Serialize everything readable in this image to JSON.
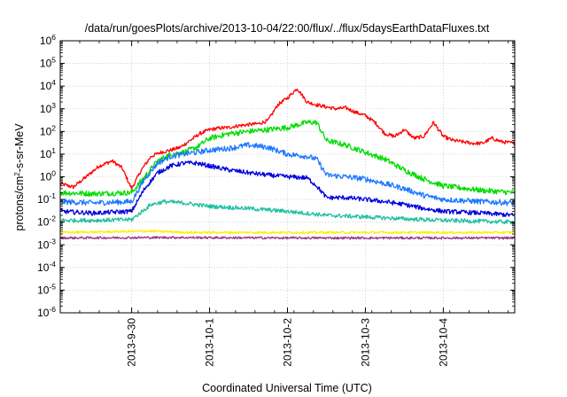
{
  "chart_data": {
    "type": "line",
    "title": "/data/run/goesPlots/archive/2013-10-04/22:00/flux/../flux/5daysEarthDataFluxes.txt",
    "xlabel": "Coordinated Universal Time (UTC)",
    "ylabel_base": "protons/cm",
    "ylabel_sup": "2",
    "ylabel_rest": "-s-sr-MeV",
    "log_y": true,
    "grid": true,
    "ylim": [
      1e-06,
      1000000.0
    ],
    "xlim": [
      "2013-09-29T02:00",
      "2013-10-04T22:00"
    ],
    "x_ticks": [
      {
        "label": "2013-9-30",
        "t": "2013-09-30T00:00"
      },
      {
        "label": "2013-10-1",
        "t": "2013-10-01T00:00"
      },
      {
        "label": "2013-10-2",
        "t": "2013-10-02T00:00"
      },
      {
        "label": "2013-10-3",
        "t": "2013-10-03T00:00"
      },
      {
        "label": "2013-10-4",
        "t": "2013-10-04T00:00"
      }
    ],
    "y_ticks": [
      {
        "base": "10",
        "exp": "-6",
        "value": 1e-06
      },
      {
        "base": "10",
        "exp": "-5",
        "value": 1e-05
      },
      {
        "base": "10",
        "exp": "-4",
        "value": 0.0001
      },
      {
        "base": "10",
        "exp": "-3",
        "value": 0.001
      },
      {
        "base": "10",
        "exp": "-2",
        "value": 0.01
      },
      {
        "base": "10",
        "exp": "-1",
        "value": 0.1
      },
      {
        "base": "10",
        "exp": "0",
        "value": 1
      },
      {
        "base": "10",
        "exp": "1",
        "value": 10
      },
      {
        "base": "10",
        "exp": "2",
        "value": 100
      },
      {
        "base": "10",
        "exp": "3",
        "value": 1000
      },
      {
        "base": "10",
        "exp": "4",
        "value": 10000
      },
      {
        "base": "10",
        "exp": "5",
        "value": 100000
      },
      {
        "base": "10",
        "exp": "6",
        "value": 1000000
      }
    ],
    "series": [
      {
        "color": "#ff0000",
        "noise": 0.08,
        "points": [
          [
            "2013-09-29T02:00",
            0.5
          ],
          [
            "2013-09-29T06:00",
            0.35
          ],
          [
            "2013-09-29T10:00",
            1.0
          ],
          [
            "2013-09-29T14:00",
            3.0
          ],
          [
            "2013-09-29T18:00",
            5.0
          ],
          [
            "2013-09-29T21:00",
            2.5
          ],
          [
            "2013-09-30T00:00",
            0.3
          ],
          [
            "2013-09-30T03:00",
            2.0
          ],
          [
            "2013-09-30T06:00",
            8.0
          ],
          [
            "2013-09-30T09:00",
            12
          ],
          [
            "2013-09-30T12:00",
            15
          ],
          [
            "2013-09-30T15:00",
            20
          ],
          [
            "2013-09-30T18:00",
            40
          ],
          [
            "2013-09-30T21:00",
            80
          ],
          [
            "2013-10-01T00:00",
            120
          ],
          [
            "2013-10-01T03:00",
            140
          ],
          [
            "2013-10-01T06:00",
            150
          ],
          [
            "2013-10-01T09:00",
            180
          ],
          [
            "2013-10-01T12:00",
            200
          ],
          [
            "2013-10-01T15:00",
            220
          ],
          [
            "2013-10-01T18:00",
            300
          ],
          [
            "2013-10-01T21:00",
            1500
          ],
          [
            "2013-10-02T00:00",
            3000
          ],
          [
            "2013-10-02T03:00",
            8000
          ],
          [
            "2013-10-02T06:00",
            2000
          ],
          [
            "2013-10-02T09:00",
            1500
          ],
          [
            "2013-10-02T12:00",
            1200
          ],
          [
            "2013-10-02T15:00",
            1000
          ],
          [
            "2013-10-02T18:00",
            1100
          ],
          [
            "2013-10-02T21:00",
            700
          ],
          [
            "2013-10-03T00:00",
            500
          ],
          [
            "2013-10-03T03:00",
            250
          ],
          [
            "2013-10-03T06:00",
            80
          ],
          [
            "2013-10-03T09:00",
            60
          ],
          [
            "2013-10-03T12:00",
            120
          ],
          [
            "2013-10-03T15:00",
            50
          ],
          [
            "2013-10-03T18:00",
            60
          ],
          [
            "2013-10-03T21:00",
            250
          ],
          [
            "2013-10-04T00:00",
            60
          ],
          [
            "2013-10-04T03:00",
            40
          ],
          [
            "2013-10-04T06:00",
            35
          ],
          [
            "2013-10-04T09:00",
            30
          ],
          [
            "2013-10-04T12:00",
            30
          ],
          [
            "2013-10-04T15:00",
            50
          ],
          [
            "2013-10-04T18:00",
            35
          ],
          [
            "2013-10-04T22:00",
            30
          ]
        ]
      },
      {
        "color": "#00dd00",
        "noise": 0.12,
        "points": [
          [
            "2013-09-29T02:00",
            0.2
          ],
          [
            "2013-09-29T12:00",
            0.18
          ],
          [
            "2013-09-30T00:00",
            0.2
          ],
          [
            "2013-09-30T04:00",
            1.0
          ],
          [
            "2013-09-30T08:00",
            5.0
          ],
          [
            "2013-09-30T12:00",
            10
          ],
          [
            "2013-09-30T16:00",
            12
          ],
          [
            "2013-09-30T20:00",
            20
          ],
          [
            "2013-10-01T00:00",
            50
          ],
          [
            "2013-10-01T06:00",
            80
          ],
          [
            "2013-10-01T12:00",
            100
          ],
          [
            "2013-10-01T18:00",
            120
          ],
          [
            "2013-10-02T00:00",
            150
          ],
          [
            "2013-10-02T06:00",
            250
          ],
          [
            "2013-10-02T09:00",
            250
          ],
          [
            "2013-10-02T12:00",
            40
          ],
          [
            "2013-10-02T18:00",
            25
          ],
          [
            "2013-10-03T00:00",
            12
          ],
          [
            "2013-10-03T06:00",
            6
          ],
          [
            "2013-10-03T12:00",
            2
          ],
          [
            "2013-10-03T18:00",
            0.8
          ],
          [
            "2013-10-04T00:00",
            0.4
          ],
          [
            "2013-10-04T12:00",
            0.25
          ],
          [
            "2013-10-04T22:00",
            0.2
          ]
        ]
      },
      {
        "color": "#1e78ff",
        "noise": 0.12,
        "points": [
          [
            "2013-09-29T02:00",
            0.08
          ],
          [
            "2013-09-29T12:00",
            0.07
          ],
          [
            "2013-09-30T00:00",
            0.08
          ],
          [
            "2013-09-30T04:00",
            0.8
          ],
          [
            "2013-09-30T08:00",
            4.0
          ],
          [
            "2013-09-30T12:00",
            8
          ],
          [
            "2013-09-30T16:00",
            10
          ],
          [
            "2013-09-30T20:00",
            12
          ],
          [
            "2013-10-01T00:00",
            15
          ],
          [
            "2013-10-01T06:00",
            18
          ],
          [
            "2013-10-01T12:00",
            25
          ],
          [
            "2013-10-01T18:00",
            20
          ],
          [
            "2013-10-02T00:00",
            10
          ],
          [
            "2013-10-02T06:00",
            8
          ],
          [
            "2013-10-02T09:00",
            6
          ],
          [
            "2013-10-02T12:00",
            1.2
          ],
          [
            "2013-10-02T18:00",
            1.0
          ],
          [
            "2013-10-03T00:00",
            0.8
          ],
          [
            "2013-10-03T06:00",
            0.5
          ],
          [
            "2013-10-03T12:00",
            0.3
          ],
          [
            "2013-10-03T18:00",
            0.15
          ],
          [
            "2013-10-04T00:00",
            0.1
          ],
          [
            "2013-10-04T12:00",
            0.08
          ],
          [
            "2013-10-04T22:00",
            0.07
          ]
        ]
      },
      {
        "color": "#0000dd",
        "noise": 0.1,
        "points": [
          [
            "2013-09-29T02:00",
            0.03
          ],
          [
            "2013-09-29T12:00",
            0.025
          ],
          [
            "2013-09-30T00:00",
            0.03
          ],
          [
            "2013-09-30T04:00",
            0.3
          ],
          [
            "2013-09-30T08:00",
            1.5
          ],
          [
            "2013-09-30T12:00",
            3.0
          ],
          [
            "2013-09-30T16:00",
            4.0
          ],
          [
            "2013-09-30T20:00",
            4.0
          ],
          [
            "2013-10-01T00:00",
            3.0
          ],
          [
            "2013-10-01T06:00",
            2.0
          ],
          [
            "2013-10-01T12:00",
            1.5
          ],
          [
            "2013-10-01T18:00",
            1.2
          ],
          [
            "2013-10-02T00:00",
            1.0
          ],
          [
            "2013-10-02T06:00",
            0.9
          ],
          [
            "2013-10-02T09:00",
            0.4
          ],
          [
            "2013-10-02T12:00",
            0.12
          ],
          [
            "2013-10-02T18:00",
            0.12
          ],
          [
            "2013-10-03T00:00",
            0.1
          ],
          [
            "2013-10-03T06:00",
            0.08
          ],
          [
            "2013-10-03T12:00",
            0.06
          ],
          [
            "2013-10-03T18:00",
            0.04
          ],
          [
            "2013-10-04T00:00",
            0.03
          ],
          [
            "2013-10-04T12:00",
            0.025
          ],
          [
            "2013-10-04T22:00",
            0.02
          ]
        ]
      },
      {
        "color": "#20c0a0",
        "noise": 0.09,
        "points": [
          [
            "2013-09-29T02:00",
            0.012
          ],
          [
            "2013-09-29T12:00",
            0.012
          ],
          [
            "2013-09-30T00:00",
            0.013
          ],
          [
            "2013-09-30T06:00",
            0.06
          ],
          [
            "2013-09-30T10:00",
            0.08
          ],
          [
            "2013-09-30T16:00",
            0.07
          ],
          [
            "2013-10-01T00:00",
            0.05
          ],
          [
            "2013-10-01T12:00",
            0.04
          ],
          [
            "2013-10-02T00:00",
            0.03
          ],
          [
            "2013-10-02T12:00",
            0.02
          ],
          [
            "2013-10-03T00:00",
            0.017
          ],
          [
            "2013-10-03T12:00",
            0.014
          ],
          [
            "2013-10-04T00:00",
            0.012
          ],
          [
            "2013-10-04T22:00",
            0.01
          ]
        ]
      },
      {
        "color": "#ffee00",
        "noise": 0.05,
        "points": [
          [
            "2013-09-29T02:00",
            0.0035
          ],
          [
            "2013-09-30T06:00",
            0.004
          ],
          [
            "2013-09-30T18:00",
            0.0035
          ],
          [
            "2013-10-02T00:00",
            0.0035
          ],
          [
            "2013-10-03T00:00",
            0.0035
          ],
          [
            "2013-10-04T22:00",
            0.0035
          ]
        ]
      },
      {
        "color": "#993388",
        "noise": 0.05,
        "points": [
          [
            "2013-09-29T02:00",
            0.002
          ],
          [
            "2013-09-30T12:00",
            0.0021
          ],
          [
            "2013-10-02T00:00",
            0.002
          ],
          [
            "2013-10-03T12:00",
            0.002
          ],
          [
            "2013-10-04T22:00",
            0.002
          ]
        ]
      }
    ]
  }
}
